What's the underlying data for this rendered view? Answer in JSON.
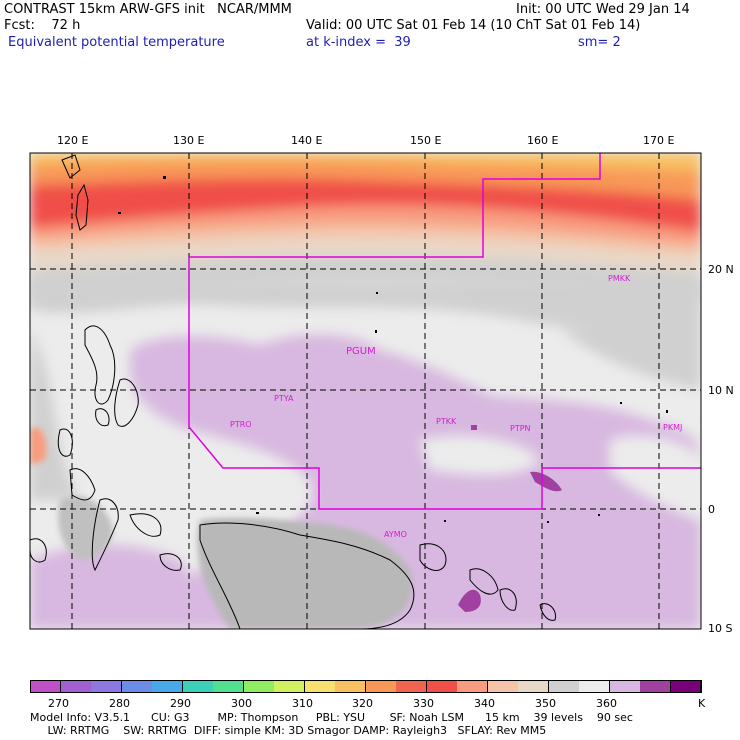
{
  "header": {
    "line1_left": "CONTRAST 15km ARW-GFS init   NCAR/MMM",
    "line1_right": "Init: 00 UTC Wed 29 Jan 14",
    "line2_left": "Fcst:    72 h",
    "line2_right": "Valid: 00 UTC Sat 01 Feb 14 (10 ChT Sat 01 Feb 14)",
    "line3_left": "Equivalent potential temperature",
    "line3_mid": "at k-index =  39",
    "line3_right": "sm= 2"
  },
  "axes": {
    "lon_labels": [
      "120 E",
      "130 E",
      "140 E",
      "150 E",
      "160 E",
      "170 E"
    ],
    "lat_labels": [
      "20 N",
      "10 N",
      "0",
      "10 S"
    ]
  },
  "stations": [
    {
      "id": "PGUM"
    },
    {
      "id": "PTYA"
    },
    {
      "id": "PTRO"
    },
    {
      "id": "PTKK"
    },
    {
      "id": "PTPN"
    },
    {
      "id": "PKMJ"
    },
    {
      "id": "PMKK"
    },
    {
      "id": "AYMO"
    }
  ],
  "colorbar": {
    "colors": [
      "#c050c8",
      "#a060d0",
      "#8c78e0",
      "#6c8ce8",
      "#48a8e8",
      "#3cd0b8",
      "#50e090",
      "#90ec60",
      "#d0f060",
      "#f8e070",
      "#f8c060",
      "#f89858",
      "#f06450",
      "#f05048",
      "#f89c80",
      "#f4c4a8",
      "#e8d8c8",
      "#d0d0d0",
      "#ececec",
      "#d8b8e0",
      "#a040a0",
      "#780078"
    ],
    "labels": [
      "270",
      "280",
      "290",
      "300",
      "310",
      "320",
      "330",
      "340",
      "350",
      "360",
      "K"
    ]
  },
  "footer": {
    "line1": "Model Info: V3.5.1      CU: G3        MP: Thompson     PBL: YSU       SF: Noah LSM      15 km    39 levels    90 sec",
    "line2": "     LW: RRTMG    SW: RRTMG  DIFF: simple KM: 3D Smagor DAMP: Rayleigh3   SFLAY: Rev MM5"
  }
}
